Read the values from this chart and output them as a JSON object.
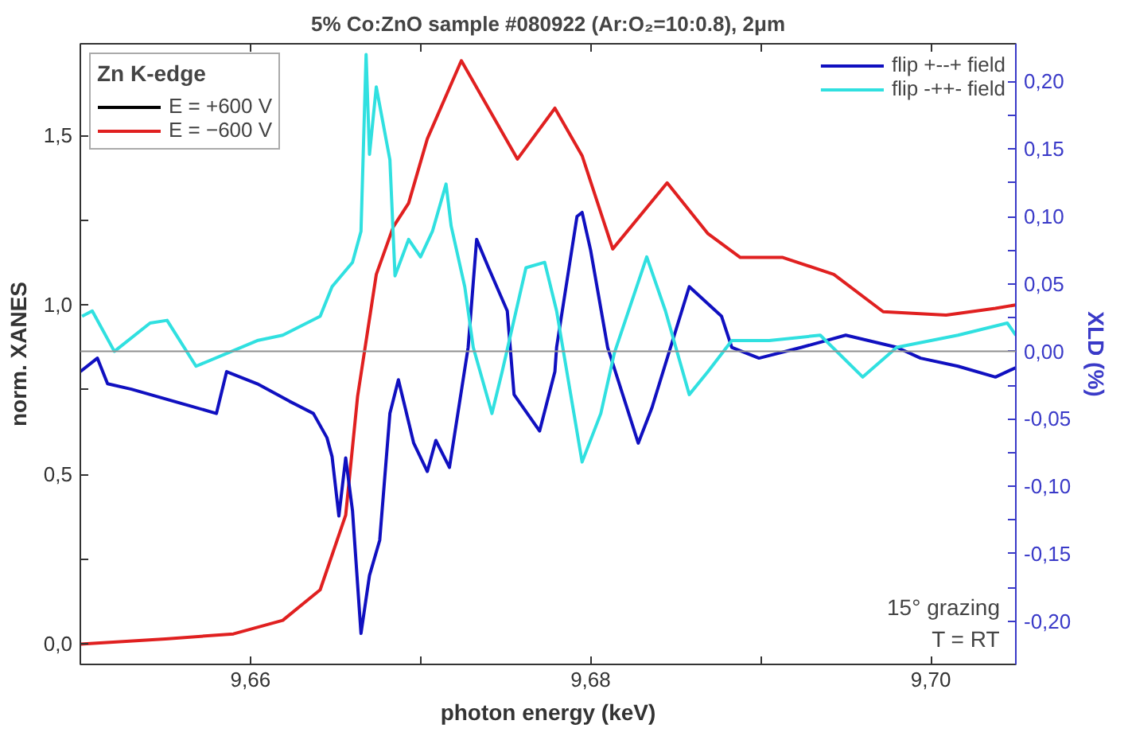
{
  "chart_data": {
    "type": "line",
    "title": "5% Co:ZnO sample #080922 (Ar:O₂=10:0.8), 2μm",
    "xlabel": "photon energy (keV)",
    "ylabel": "norm. XANES",
    "y2label": "XLD (%)",
    "annotations": [
      "Zn K-edge",
      "15° grazing",
      "T = RT"
    ],
    "xlim": [
      9.65,
      9.705
    ],
    "xticks": [
      {
        "value": 9.66,
        "label": "9,66"
      },
      {
        "value": 9.67,
        "label": null
      },
      {
        "value": 9.68,
        "label": "9,68"
      },
      {
        "value": 9.69,
        "label": null
      },
      {
        "value": 9.7,
        "label": "9,70"
      }
    ],
    "ylim": [
      -0.06,
      1.77
    ],
    "yticks": [
      {
        "value": 0,
        "label": "0,0"
      },
      {
        "value": 0.25,
        "label": null
      },
      {
        "value": 0.5,
        "label": "0,5"
      },
      {
        "value": 0.75,
        "label": null
      },
      {
        "value": 1.0,
        "label": "1,0"
      },
      {
        "value": 1.25,
        "label": null
      },
      {
        "value": 1.5,
        "label": "1,5"
      }
    ],
    "y2lim": [
      -0.232,
      0.228
    ],
    "y2ticks": [
      {
        "value": -0.2,
        "label": "-0,20"
      },
      {
        "value": -0.175,
        "label": null
      },
      {
        "value": -0.15,
        "label": "-0,15"
      },
      {
        "value": -0.125,
        "label": null
      },
      {
        "value": -0.1,
        "label": "-0,10"
      },
      {
        "value": -0.075,
        "label": null
      },
      {
        "value": -0.05,
        "label": "-0,05"
      },
      {
        "value": -0.025,
        "label": null
      },
      {
        "value": 0,
        "label": "0,00"
      },
      {
        "value": 0.025,
        "label": null
      },
      {
        "value": 0.05,
        "label": "0,05"
      },
      {
        "value": 0.075,
        "label": null
      },
      {
        "value": 0.1,
        "label": "0,10"
      },
      {
        "value": 0.125,
        "label": null
      },
      {
        "value": 0.15,
        "label": "0,15"
      },
      {
        "value": 0.175,
        "label": null
      },
      {
        "value": 0.2,
        "label": "0,20"
      }
    ],
    "ref_lines": [
      {
        "axis": "y2",
        "value": 0,
        "color": "#909090"
      }
    ],
    "legend": "top left",
    "grid": false,
    "line_style": "solid",
    "marker": "none",
    "series": [
      {
        "name": "E = +600 V",
        "color": "#000000"
      },
      {
        "name": "E = −600 V",
        "color": "#e02020",
        "x": [
          9.65,
          9.655,
          9.659,
          9.6619,
          9.6641,
          9.6656,
          9.6663,
          9.6674,
          9.6684,
          9.6693,
          9.6704,
          9.6724,
          9.6757,
          9.6779,
          9.6795,
          9.6813,
          9.6845,
          9.6869,
          9.6888,
          9.6913,
          9.6943,
          9.6972,
          9.7009,
          9.7038,
          9.705
        ],
        "values": [
          0.0,
          0.015,
          0.03,
          0.07,
          0.16,
          0.38,
          0.73,
          1.09,
          1.23,
          1.3,
          1.49,
          1.72,
          1.43,
          1.58,
          1.44,
          1.165,
          1.36,
          1.21,
          1.14,
          1.14,
          1.09,
          0.98,
          0.97,
          0.99,
          1.0
        ]
      },
      {
        "name": "flip +--+ field",
        "color": "#1010c0",
        "axis": "y2",
        "x": [
          9.65,
          9.651,
          9.6516,
          9.653,
          9.658,
          9.6586,
          9.6604,
          9.6623,
          9.6637,
          9.6645,
          9.6648,
          9.6652,
          9.6656,
          9.666,
          9.6665,
          9.667,
          9.6676,
          9.6682,
          9.6687,
          9.6696,
          9.6704,
          9.6709,
          9.6717,
          9.6728,
          9.6733,
          9.674,
          9.6751,
          9.6755,
          9.677,
          9.6779,
          9.678,
          9.6792,
          9.6795,
          9.68,
          9.681,
          9.6828,
          9.6836,
          9.6858,
          9.6877,
          9.6883,
          9.6899,
          9.6924,
          9.695,
          9.698,
          9.6994,
          9.7016,
          9.7038,
          9.705
        ],
        "values": [
          -0.015,
          -0.005,
          -0.024,
          -0.028,
          -0.046,
          -0.015,
          -0.024,
          -0.037,
          -0.046,
          -0.064,
          -0.078,
          -0.122,
          -0.079,
          -0.118,
          -0.209,
          -0.166,
          -0.14,
          -0.046,
          -0.021,
          -0.068,
          -0.089,
          -0.066,
          -0.086,
          0.003,
          0.083,
          0.062,
          0.03,
          -0.032,
          -0.059,
          -0.015,
          0.003,
          0.1,
          0.103,
          0.075,
          0.003,
          -0.068,
          -0.042,
          0.048,
          0.026,
          0.003,
          -0.005,
          0.003,
          0.012,
          0.003,
          -0.005,
          -0.011,
          -0.019,
          -0.012
        ]
      },
      {
        "name": "flip -++- field",
        "color": "#30e0e0",
        "axis": "y2",
        "x": [
          9.6501,
          9.6507,
          9.652,
          9.6541,
          9.6551,
          9.6568,
          9.6604,
          9.6619,
          9.6641,
          9.6648,
          9.666,
          9.6665,
          9.6668,
          9.667,
          9.6674,
          9.6678,
          9.6682,
          9.6685,
          9.6693,
          9.67,
          9.6707,
          9.6715,
          9.6718,
          9.6726,
          9.6731,
          9.6742,
          9.6748,
          9.6762,
          9.6773,
          9.678,
          9.6795,
          9.6806,
          9.6814,
          9.6833,
          9.6844,
          9.6858,
          9.6869,
          9.6883,
          9.6905,
          9.6935,
          9.696,
          9.698,
          9.7016,
          9.7045,
          9.705
        ],
        "values": [
          0.026,
          0.03,
          0.0,
          0.021,
          0.023,
          -0.011,
          0.008,
          0.012,
          0.026,
          0.048,
          0.066,
          0.089,
          0.22,
          0.146,
          0.196,
          0.169,
          0.142,
          0.056,
          0.083,
          0.07,
          0.089,
          0.124,
          0.093,
          0.048,
          0.003,
          -0.046,
          -0.015,
          0.062,
          0.066,
          0.03,
          -0.082,
          -0.046,
          -0.001,
          0.07,
          0.03,
          -0.032,
          -0.015,
          0.008,
          0.008,
          0.012,
          -0.019,
          0.003,
          0.012,
          0.021,
          0.012
        ]
      }
    ]
  }
}
